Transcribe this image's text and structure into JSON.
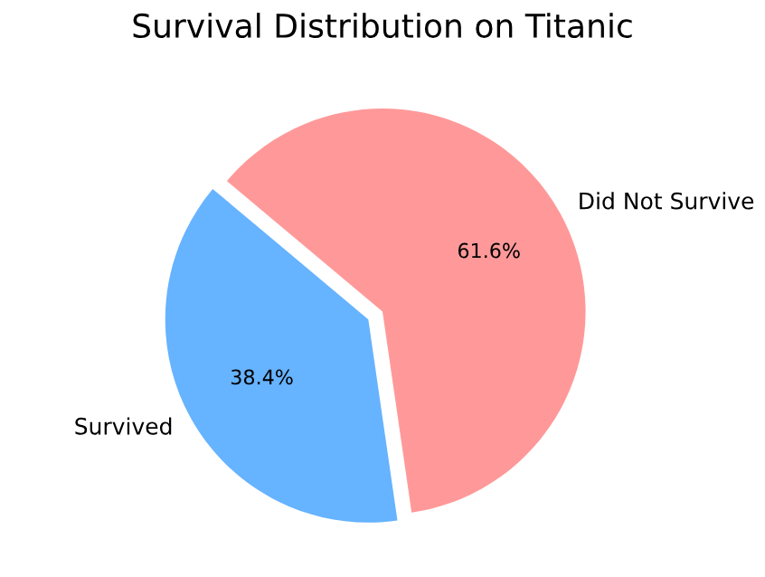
{
  "chart_data": {
    "type": "pie",
    "title": "Survival Distribution on Titanic",
    "categories": [
      "Survived",
      "Did Not Survive"
    ],
    "values": [
      38.4,
      61.6
    ],
    "colors": [
      "#66b3ff",
      "#ff9999"
    ],
    "value_labels": [
      "38.4%",
      "61.6%"
    ]
  }
}
